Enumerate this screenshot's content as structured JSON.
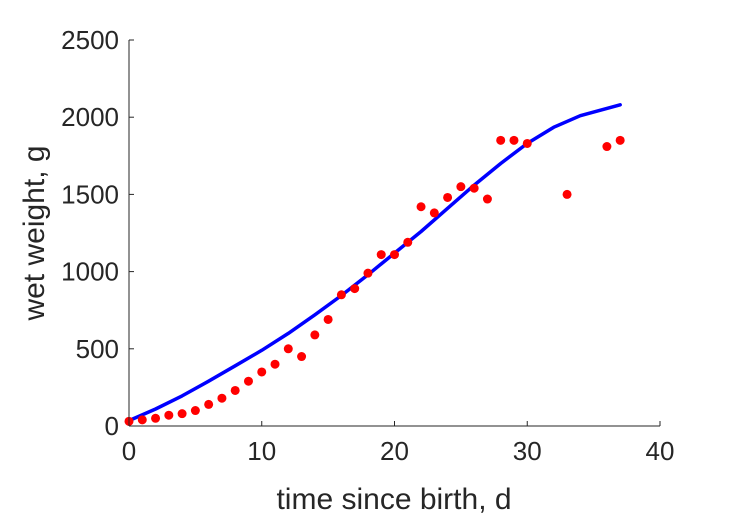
{
  "chart_data": {
    "type": "scatter",
    "title": "",
    "xlabel": "time since birth, d",
    "ylabel": "wet weight, g",
    "xlim": [
      0,
      40
    ],
    "ylim": [
      0,
      2500
    ],
    "xticks": [
      0,
      10,
      20,
      30,
      40
    ],
    "yticks": [
      0,
      500,
      1000,
      1500,
      2000,
      2500
    ],
    "grid": false,
    "legend": "none",
    "series": [
      {
        "kind": "points",
        "color": "#ff0000",
        "x": [
          0,
          1,
          2,
          3,
          4,
          5,
          6,
          7,
          8,
          9,
          10,
          11,
          12,
          13,
          14,
          15,
          16,
          17,
          18,
          19,
          20,
          21,
          22,
          23,
          24,
          25,
          26,
          27,
          28,
          29,
          30,
          33,
          36,
          37
        ],
        "y": [
          30,
          40,
          50,
          70,
          80,
          100,
          140,
          180,
          230,
          290,
          350,
          400,
          500,
          450,
          590,
          690,
          850,
          890,
          990,
          1110,
          1110,
          1190,
          1420,
          1380,
          1480,
          1550,
          1540,
          1470,
          1850,
          1850,
          1830,
          1500,
          1810,
          1850
        ]
      },
      {
        "kind": "line",
        "color": "#0000ff",
        "x": [
          0,
          2,
          4,
          6,
          8,
          10,
          12,
          14,
          16,
          18,
          20,
          22,
          24,
          26,
          28,
          30,
          32,
          34,
          37
        ],
        "y": [
          35,
          110,
          195,
          290,
          390,
          490,
          600,
          720,
          845,
          980,
          1120,
          1260,
          1410,
          1560,
          1700,
          1830,
          1935,
          2010,
          2080
        ]
      }
    ]
  }
}
